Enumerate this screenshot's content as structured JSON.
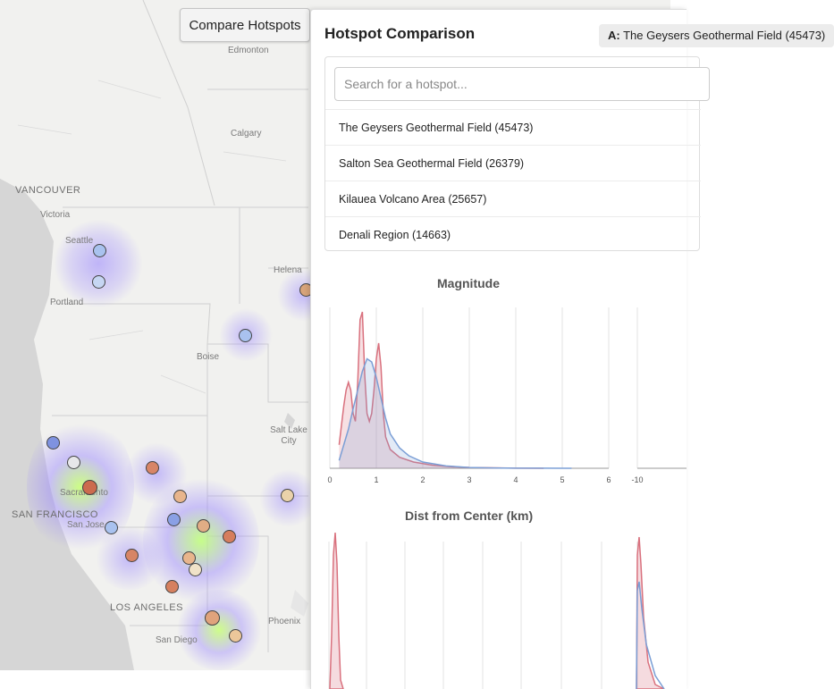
{
  "map": {
    "cities": [
      {
        "name": "Edmonton",
        "big": false
      },
      {
        "name": "Calgary",
        "big": false
      },
      {
        "name": "VANCOUVER",
        "big": true
      },
      {
        "name": "Victoria",
        "big": false
      },
      {
        "name": "Seattle",
        "big": false
      },
      {
        "name": "Portland",
        "big": false
      },
      {
        "name": "Helena",
        "big": false
      },
      {
        "name": "Boise",
        "big": false
      },
      {
        "name": "Salt Lake City",
        "big": false
      },
      {
        "name": "Sacramento",
        "big": false
      },
      {
        "name": "SAN FRANCISCO",
        "big": true
      },
      {
        "name": "San Jose",
        "big": false
      },
      {
        "name": "LOS ANGELES",
        "big": true
      },
      {
        "name": "San Diego",
        "big": false
      },
      {
        "name": "Phoenix",
        "big": false
      }
    ],
    "colors": {
      "land": "#f1f1ef",
      "water": "#d6d6d6",
      "border": "#cfcfcf"
    }
  },
  "compare_button": {
    "label": "Compare Hotspots"
  },
  "panel": {
    "title": "Hotspot Comparison",
    "slot_a_prefix": "A:",
    "slot_a_value": "The Geysers Geothermal Field (45473)",
    "search_placeholder": "Search for a hotspot...",
    "options": [
      "The Geysers Geothermal Field (45473)",
      "Salton Sea Geothermal Field (26379)",
      "Kilauea Volcano Area (25657)",
      "Denali Region (14663)"
    ]
  },
  "chart_data": [
    {
      "type": "area",
      "title": "Magnitude",
      "xlim": [
        0,
        6
      ],
      "xticks": [
        "0",
        "1",
        "2",
        "3",
        "4",
        "5",
        "6"
      ],
      "series": [
        {
          "color": "#d9717e",
          "x": [
            0.2,
            0.3,
            0.35,
            0.4,
            0.45,
            0.5,
            0.55,
            0.6,
            0.65,
            0.7,
            0.75,
            0.8,
            0.85,
            0.9,
            0.95,
            1.0,
            1.05,
            1.1,
            1.15,
            1.2,
            1.3,
            1.5,
            1.8,
            2.2,
            2.6,
            3.0,
            3.5,
            4.0,
            4.6
          ],
          "y": [
            0.15,
            0.4,
            0.5,
            0.55,
            0.5,
            0.35,
            0.3,
            0.55,
            0.95,
            1.0,
            0.6,
            0.35,
            0.3,
            0.35,
            0.5,
            0.7,
            0.8,
            0.65,
            0.35,
            0.2,
            0.12,
            0.07,
            0.04,
            0.02,
            0.01,
            0.005,
            0.003,
            0.001,
            0.0
          ]
        },
        {
          "color": "#7b9fd6",
          "x": [
            0.2,
            0.3,
            0.4,
            0.5,
            0.6,
            0.7,
            0.8,
            0.9,
            1.0,
            1.1,
            1.2,
            1.3,
            1.5,
            1.7,
            2.0,
            2.5,
            3.0,
            3.5,
            4.0,
            4.5,
            5.2
          ],
          "y": [
            0.05,
            0.15,
            0.25,
            0.38,
            0.5,
            0.62,
            0.7,
            0.68,
            0.58,
            0.45,
            0.32,
            0.22,
            0.13,
            0.08,
            0.04,
            0.015,
            0.005,
            0.002,
            0.001,
            0.0005,
            0.0
          ]
        }
      ]
    },
    {
      "type": "area",
      "title": "",
      "xticks": [
        "-10"
      ]
    },
    {
      "type": "area",
      "title": "Dist from Center (km)"
    }
  ]
}
